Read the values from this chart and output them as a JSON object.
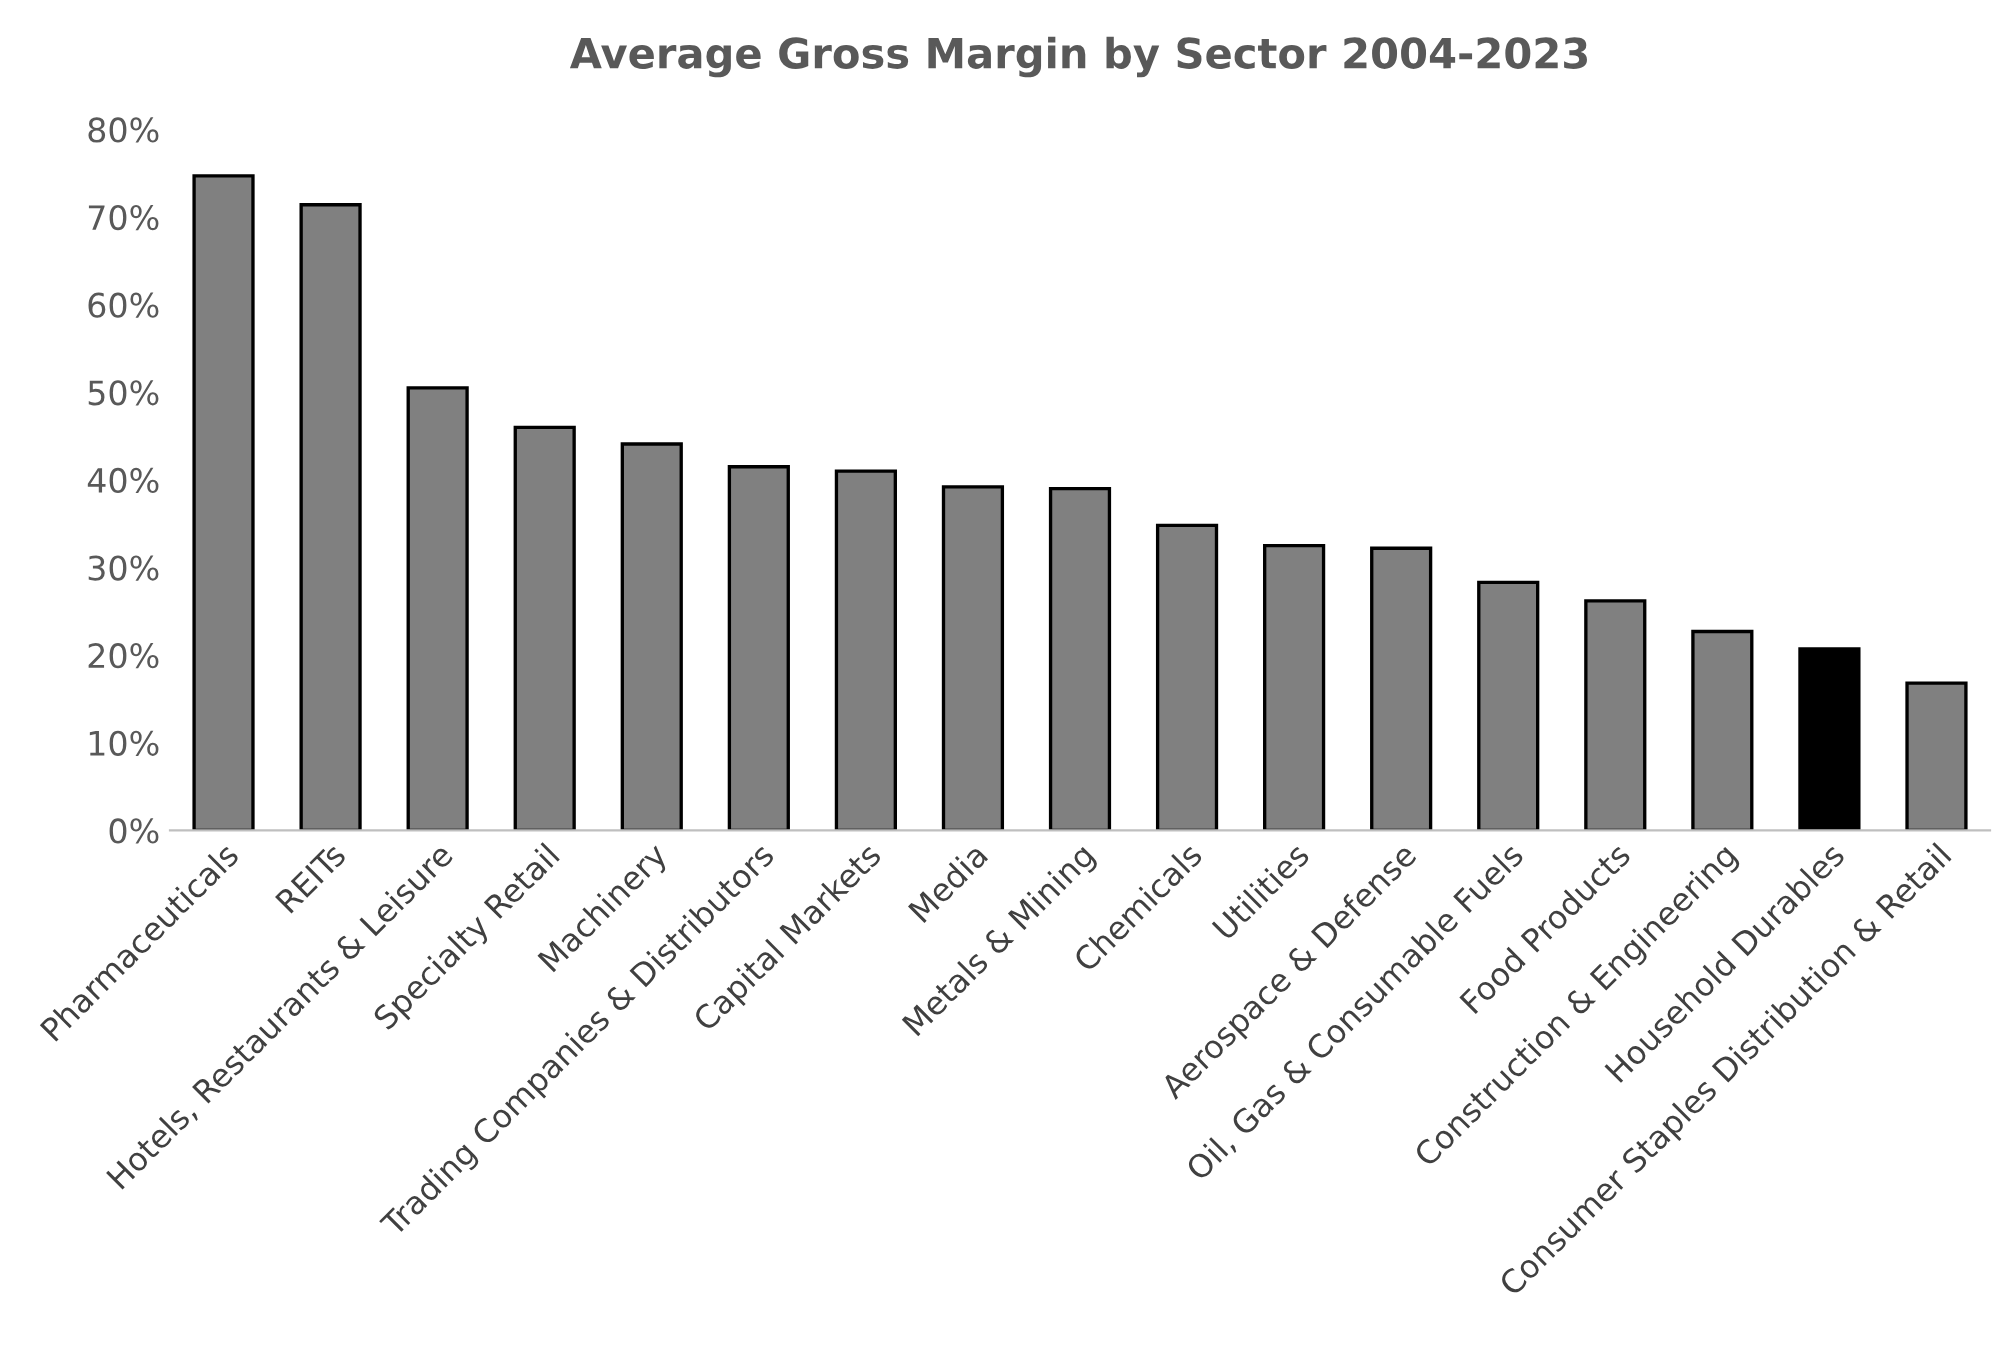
{
  "chart_data": {
    "type": "bar",
    "title": "Average Gross Margin by Sector 2004-2023",
    "categories": [
      "Pharmaceuticals",
      "REITs",
      "Hotels, Restaurants & Leisure",
      "Specialty Retail",
      "Machinery",
      "Trading Companies & Distributors",
      "Capital Markets",
      "Media",
      "Metals & Mining",
      "Chemicals",
      "Utilities",
      "Aerospace & Defense",
      "Oil, Gas & Consumable Fuels",
      "Food Products",
      "Construction & Engineering",
      "Household Durables",
      "Consumer Staples Distribution & Retail"
    ],
    "values": [
      74.7,
      71.4,
      50.5,
      46.0,
      44.1,
      41.5,
      41.0,
      39.2,
      39.0,
      34.8,
      32.5,
      32.2,
      28.3,
      26.2,
      22.7,
      20.7,
      16.8
    ],
    "colors": [
      "#808080",
      "#808080",
      "#808080",
      "#808080",
      "#808080",
      "#808080",
      "#808080",
      "#808080",
      "#808080",
      "#808080",
      "#808080",
      "#808080",
      "#808080",
      "#808080",
      "#808080",
      "#000000",
      "#808080"
    ],
    "ylim": [
      0,
      80
    ],
    "yticks": [
      {
        "value": 0,
        "label": "0%"
      },
      {
        "value": 10,
        "label": "10%"
      },
      {
        "value": 20,
        "label": "20%"
      },
      {
        "value": 30,
        "label": "30%"
      },
      {
        "value": 40,
        "label": "40%"
      },
      {
        "value": 50,
        "label": "50%"
      },
      {
        "value": 60,
        "label": "60%"
      },
      {
        "value": 70,
        "label": "70%"
      },
      {
        "value": 80,
        "label": "80%"
      }
    ],
    "grid": false,
    "legend": false
  }
}
